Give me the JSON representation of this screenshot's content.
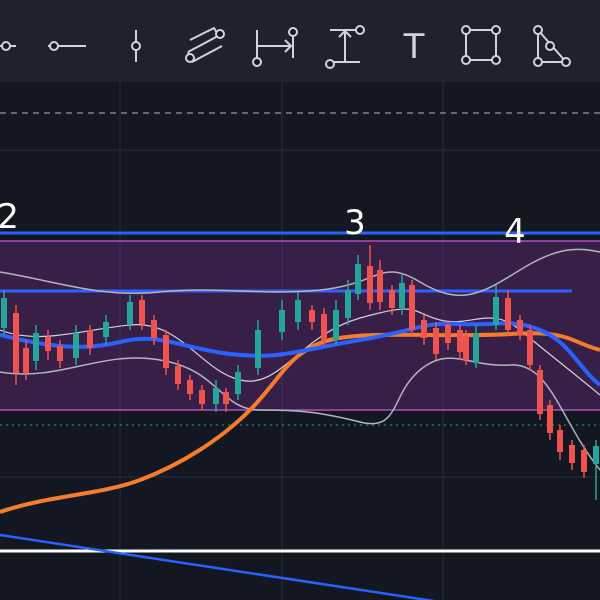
{
  "toolbar": {
    "text_tool": "T"
  },
  "wave_labels": [
    "2",
    "3",
    "4"
  ]
}
